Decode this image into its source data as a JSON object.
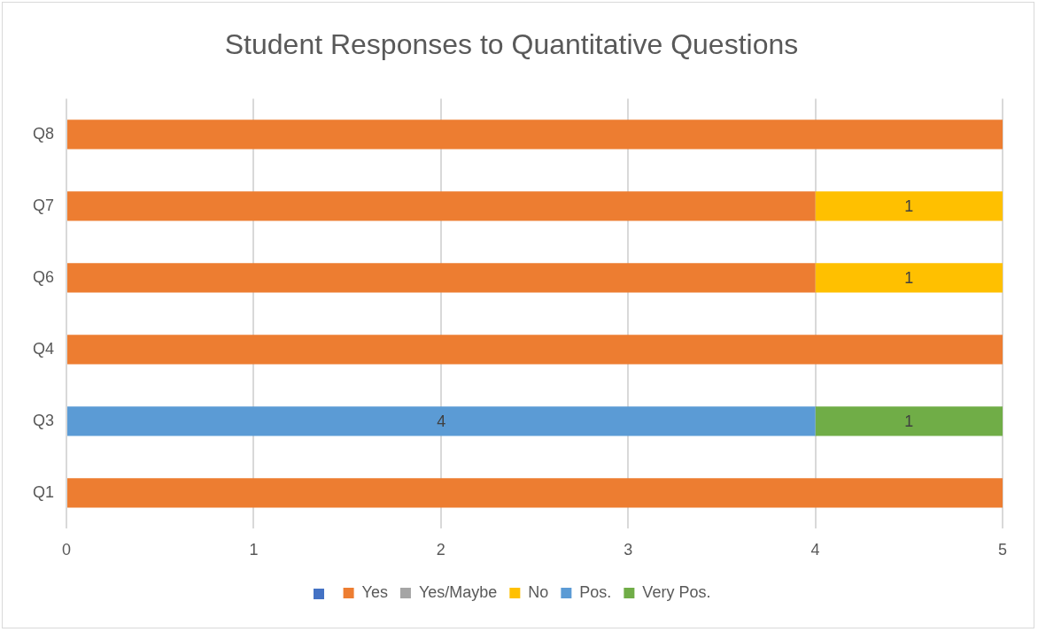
{
  "chart_data": {
    "type": "bar",
    "title": "Student Responses to Quantitative Questions",
    "orientation": "horizontal",
    "stacked": true,
    "categories": [
      "Q8",
      "Q7",
      "Q6",
      "Q4",
      "Q3",
      "Q1"
    ],
    "series": [
      {
        "color": "#4472c4",
        "values": [
          null,
          null,
          null,
          null,
          null,
          null
        ]
      },
      {
        "name": "Yes",
        "color": "#ed7d31",
        "values": [
          5,
          4,
          4,
          5,
          null,
          5
        ]
      },
      {
        "name": "Yes/Maybe",
        "color": "#a5a5a5",
        "values": [
          null,
          null,
          null,
          null,
          null,
          null
        ]
      },
      {
        "name": "No",
        "color": "#ffc000",
        "values": [
          null,
          1,
          1,
          null,
          null,
          null
        ],
        "value_labels": [
          null,
          "1",
          "1",
          null,
          null,
          null
        ]
      },
      {
        "name": "Pos.",
        "color": "#5b9bd5",
        "values": [
          null,
          null,
          null,
          null,
          4,
          null
        ],
        "value_labels": [
          null,
          null,
          null,
          null,
          "4",
          null
        ]
      },
      {
        "name": "Very Pos.",
        "color": "#70ad47",
        "values": [
          null,
          null,
          null,
          null,
          1,
          null
        ],
        "value_labels": [
          null,
          null,
          null,
          null,
          "1",
          null
        ]
      }
    ],
    "xlim": [
      0,
      5
    ],
    "xticks": [
      0,
      1,
      2,
      3,
      4,
      5
    ],
    "grid": "x",
    "legend": "bottom"
  }
}
